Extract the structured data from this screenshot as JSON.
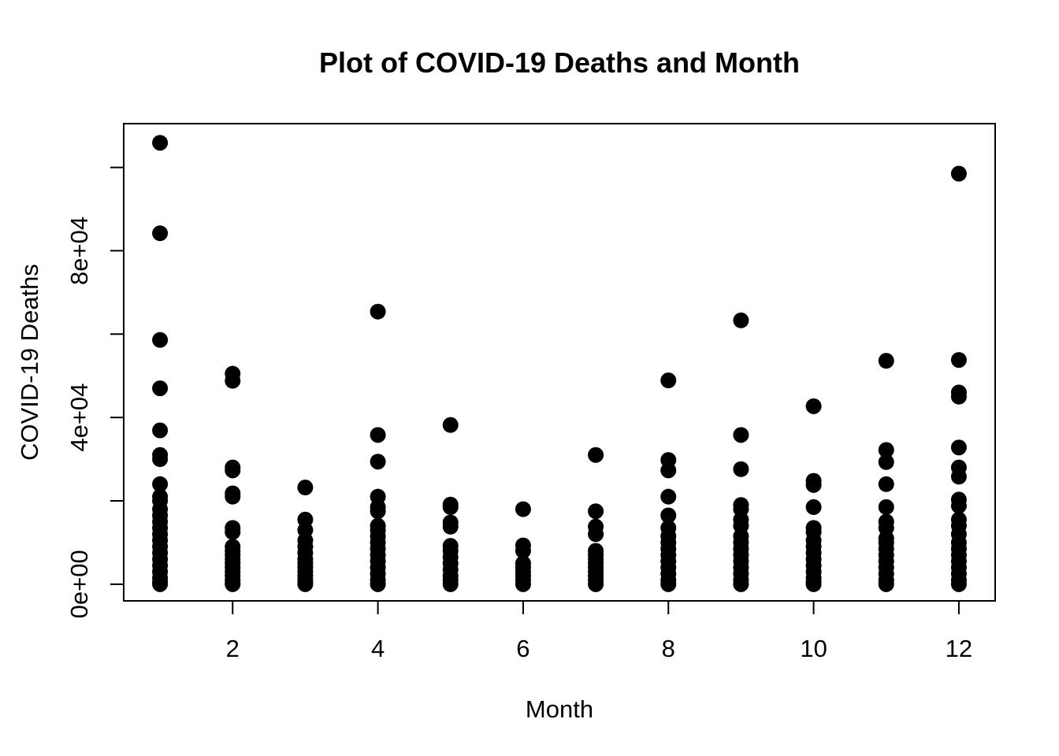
{
  "chart_data": {
    "type": "scatter",
    "title": "Plot of COVID-19 Deaths and Month",
    "xlabel": "Month",
    "ylabel": "COVID-19 Deaths",
    "xlim": [
      0.5,
      12.5
    ],
    "ylim": [
      -4000,
      110500
    ],
    "x_ticks": [
      2,
      4,
      6,
      8,
      10,
      12
    ],
    "x_tick_labels": [
      "2",
      "4",
      "6",
      "8",
      "10",
      "12"
    ],
    "y_ticks": [
      0,
      20000,
      40000,
      60000,
      80000,
      100000
    ],
    "y_tick_labels": [
      "0e+00",
      "",
      "4e+04",
      "",
      "8e+04",
      ""
    ],
    "grid": false,
    "legend": "none",
    "marker_color": "#000000",
    "points": [
      {
        "x": 1,
        "y": 105900
      },
      {
        "x": 1,
        "y": 84200
      },
      {
        "x": 1,
        "y": 58600
      },
      {
        "x": 1,
        "y": 47000
      },
      {
        "x": 1,
        "y": 36900
      },
      {
        "x": 1,
        "y": 31000
      },
      {
        "x": 1,
        "y": 30000
      },
      {
        "x": 1,
        "y": 24000
      },
      {
        "x": 1,
        "y": 21000
      },
      {
        "x": 1,
        "y": 20000
      },
      {
        "x": 1,
        "y": 18000
      },
      {
        "x": 1,
        "y": 16500
      },
      {
        "x": 1,
        "y": 15000
      },
      {
        "x": 1,
        "y": 13500
      },
      {
        "x": 1,
        "y": 12000
      },
      {
        "x": 1,
        "y": 10500
      },
      {
        "x": 1,
        "y": 9000
      },
      {
        "x": 1,
        "y": 7500
      },
      {
        "x": 1,
        "y": 6000
      },
      {
        "x": 1,
        "y": 4500
      },
      {
        "x": 1,
        "y": 3000
      },
      {
        "x": 1,
        "y": 1500
      },
      {
        "x": 1,
        "y": 500
      },
      {
        "x": 1,
        "y": 0
      },
      {
        "x": 2,
        "y": 50500
      },
      {
        "x": 2,
        "y": 48800
      },
      {
        "x": 2,
        "y": 28000
      },
      {
        "x": 2,
        "y": 27300
      },
      {
        "x": 2,
        "y": 21800
      },
      {
        "x": 2,
        "y": 21000
      },
      {
        "x": 2,
        "y": 13500
      },
      {
        "x": 2,
        "y": 12500
      },
      {
        "x": 2,
        "y": 9000
      },
      {
        "x": 2,
        "y": 8000
      },
      {
        "x": 2,
        "y": 7000
      },
      {
        "x": 2,
        "y": 6000
      },
      {
        "x": 2,
        "y": 5000
      },
      {
        "x": 2,
        "y": 4000
      },
      {
        "x": 2,
        "y": 3000
      },
      {
        "x": 2,
        "y": 2000
      },
      {
        "x": 2,
        "y": 1000
      },
      {
        "x": 2,
        "y": 300
      },
      {
        "x": 2,
        "y": 0
      },
      {
        "x": 3,
        "y": 23200
      },
      {
        "x": 3,
        "y": 15500
      },
      {
        "x": 3,
        "y": 13000
      },
      {
        "x": 3,
        "y": 10500
      },
      {
        "x": 3,
        "y": 9000
      },
      {
        "x": 3,
        "y": 7500
      },
      {
        "x": 3,
        "y": 6000
      },
      {
        "x": 3,
        "y": 5000
      },
      {
        "x": 3,
        "y": 4000
      },
      {
        "x": 3,
        "y": 3000
      },
      {
        "x": 3,
        "y": 2000
      },
      {
        "x": 3,
        "y": 1000
      },
      {
        "x": 3,
        "y": 300
      },
      {
        "x": 3,
        "y": 0
      },
      {
        "x": 4,
        "y": 65400
      },
      {
        "x": 4,
        "y": 35800
      },
      {
        "x": 4,
        "y": 29400
      },
      {
        "x": 4,
        "y": 21000
      },
      {
        "x": 4,
        "y": 18500
      },
      {
        "x": 4,
        "y": 17500
      },
      {
        "x": 4,
        "y": 14000
      },
      {
        "x": 4,
        "y": 13000
      },
      {
        "x": 4,
        "y": 11500
      },
      {
        "x": 4,
        "y": 10000
      },
      {
        "x": 4,
        "y": 8500
      },
      {
        "x": 4,
        "y": 7000
      },
      {
        "x": 4,
        "y": 5500
      },
      {
        "x": 4,
        "y": 4000
      },
      {
        "x": 4,
        "y": 2500
      },
      {
        "x": 4,
        "y": 1000
      },
      {
        "x": 4,
        "y": 0
      },
      {
        "x": 5,
        "y": 38200
      },
      {
        "x": 5,
        "y": 19100
      },
      {
        "x": 5,
        "y": 18500
      },
      {
        "x": 5,
        "y": 14800
      },
      {
        "x": 5,
        "y": 13800
      },
      {
        "x": 5,
        "y": 9200
      },
      {
        "x": 5,
        "y": 8000
      },
      {
        "x": 5,
        "y": 6500
      },
      {
        "x": 5,
        "y": 5000
      },
      {
        "x": 5,
        "y": 3500
      },
      {
        "x": 5,
        "y": 2000
      },
      {
        "x": 5,
        "y": 1000
      },
      {
        "x": 5,
        "y": 0
      },
      {
        "x": 6,
        "y": 18000
      },
      {
        "x": 6,
        "y": 9300
      },
      {
        "x": 6,
        "y": 8000
      },
      {
        "x": 6,
        "y": 5000
      },
      {
        "x": 6,
        "y": 4000
      },
      {
        "x": 6,
        "y": 3000
      },
      {
        "x": 6,
        "y": 2000
      },
      {
        "x": 6,
        "y": 1000
      },
      {
        "x": 6,
        "y": 0
      },
      {
        "x": 7,
        "y": 31000
      },
      {
        "x": 7,
        "y": 17500
      },
      {
        "x": 7,
        "y": 13800
      },
      {
        "x": 7,
        "y": 12000
      },
      {
        "x": 7,
        "y": 8000
      },
      {
        "x": 7,
        "y": 7000
      },
      {
        "x": 7,
        "y": 6000
      },
      {
        "x": 7,
        "y": 5000
      },
      {
        "x": 7,
        "y": 4000
      },
      {
        "x": 7,
        "y": 3000
      },
      {
        "x": 7,
        "y": 2000
      },
      {
        "x": 7,
        "y": 1000
      },
      {
        "x": 7,
        "y": 0
      },
      {
        "x": 8,
        "y": 48900
      },
      {
        "x": 8,
        "y": 29800
      },
      {
        "x": 8,
        "y": 27300
      },
      {
        "x": 8,
        "y": 21000
      },
      {
        "x": 8,
        "y": 16500
      },
      {
        "x": 8,
        "y": 13500
      },
      {
        "x": 8,
        "y": 11500
      },
      {
        "x": 8,
        "y": 10000
      },
      {
        "x": 8,
        "y": 8500
      },
      {
        "x": 8,
        "y": 7000
      },
      {
        "x": 8,
        "y": 5500
      },
      {
        "x": 8,
        "y": 4000
      },
      {
        "x": 8,
        "y": 2500
      },
      {
        "x": 8,
        "y": 1000
      },
      {
        "x": 8,
        "y": 0
      },
      {
        "x": 9,
        "y": 63300
      },
      {
        "x": 9,
        "y": 35800
      },
      {
        "x": 9,
        "y": 27600
      },
      {
        "x": 9,
        "y": 19000
      },
      {
        "x": 9,
        "y": 18000
      },
      {
        "x": 9,
        "y": 15500
      },
      {
        "x": 9,
        "y": 14000
      },
      {
        "x": 9,
        "y": 11500
      },
      {
        "x": 9,
        "y": 10000
      },
      {
        "x": 9,
        "y": 8500
      },
      {
        "x": 9,
        "y": 7000
      },
      {
        "x": 9,
        "y": 5500
      },
      {
        "x": 9,
        "y": 4000
      },
      {
        "x": 9,
        "y": 2500
      },
      {
        "x": 9,
        "y": 1000
      },
      {
        "x": 9,
        "y": 0
      },
      {
        "x": 10,
        "y": 42700
      },
      {
        "x": 10,
        "y": 24800
      },
      {
        "x": 10,
        "y": 23800
      },
      {
        "x": 10,
        "y": 18500
      },
      {
        "x": 10,
        "y": 13500
      },
      {
        "x": 10,
        "y": 12500
      },
      {
        "x": 10,
        "y": 10500
      },
      {
        "x": 10,
        "y": 9000
      },
      {
        "x": 10,
        "y": 7500
      },
      {
        "x": 10,
        "y": 6000
      },
      {
        "x": 10,
        "y": 4500
      },
      {
        "x": 10,
        "y": 3000
      },
      {
        "x": 10,
        "y": 1500
      },
      {
        "x": 10,
        "y": 500
      },
      {
        "x": 10,
        "y": 0
      },
      {
        "x": 11,
        "y": 53600
      },
      {
        "x": 11,
        "y": 32200
      },
      {
        "x": 11,
        "y": 29300
      },
      {
        "x": 11,
        "y": 24000
      },
      {
        "x": 11,
        "y": 18500
      },
      {
        "x": 11,
        "y": 15000
      },
      {
        "x": 11,
        "y": 13500
      },
      {
        "x": 11,
        "y": 11000
      },
      {
        "x": 11,
        "y": 10000
      },
      {
        "x": 11,
        "y": 8500
      },
      {
        "x": 11,
        "y": 7000
      },
      {
        "x": 11,
        "y": 5500
      },
      {
        "x": 11,
        "y": 4000
      },
      {
        "x": 11,
        "y": 2500
      },
      {
        "x": 11,
        "y": 1000
      },
      {
        "x": 11,
        "y": 0
      },
      {
        "x": 12,
        "y": 98500
      },
      {
        "x": 12,
        "y": 53800
      },
      {
        "x": 12,
        "y": 46000
      },
      {
        "x": 12,
        "y": 45000
      },
      {
        "x": 12,
        "y": 32800
      },
      {
        "x": 12,
        "y": 28000
      },
      {
        "x": 12,
        "y": 25800
      },
      {
        "x": 12,
        "y": 20300
      },
      {
        "x": 12,
        "y": 18800
      },
      {
        "x": 12,
        "y": 15500
      },
      {
        "x": 12,
        "y": 14000
      },
      {
        "x": 12,
        "y": 12000
      },
      {
        "x": 12,
        "y": 10000
      },
      {
        "x": 12,
        "y": 8500
      },
      {
        "x": 12,
        "y": 7000
      },
      {
        "x": 12,
        "y": 5500
      },
      {
        "x": 12,
        "y": 4000
      },
      {
        "x": 12,
        "y": 2500
      },
      {
        "x": 12,
        "y": 1000
      },
      {
        "x": 12,
        "y": 0
      }
    ]
  }
}
